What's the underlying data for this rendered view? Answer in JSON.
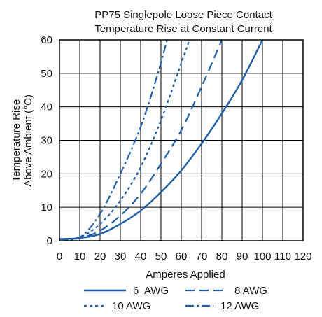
{
  "chart_data": {
    "type": "line",
    "title": "PP75 Singlepole Loose Piece Contact",
    "subtitle": "Temperature Rise at Constant Current",
    "xlabel": "Amperes Applied",
    "ylabel_line1": "Temperature Rise",
    "ylabel_line2": "Above Ambient (°C)",
    "xlim": [
      0,
      120
    ],
    "ylim": [
      0,
      60
    ],
    "x_ticks": [
      "0",
      "10",
      "20",
      "30",
      "40",
      "50",
      "60",
      "70",
      "80",
      "90",
      "100",
      "110",
      "120"
    ],
    "y_ticks": [
      "0",
      "10",
      "20",
      "30",
      "40",
      "50",
      "60"
    ],
    "grid": true,
    "legend_position": "bottom",
    "series": [
      {
        "name": "6  AWG",
        "style": "solid",
        "color": "#1f5fa8",
        "x": [
          0,
          10,
          20,
          30,
          40,
          50,
          60,
          70,
          80,
          90,
          100
        ],
        "y": [
          0.5,
          0.8,
          2,
          5,
          9,
          14.5,
          21,
          29,
          38,
          48,
          60
        ]
      },
      {
        "name": "8 AWG",
        "style": "dash",
        "color": "#1f5fa8",
        "x": [
          0,
          10,
          20,
          30,
          40,
          50,
          60,
          70,
          80
        ],
        "y": [
          0.5,
          0.8,
          3,
          7.5,
          14,
          23,
          33,
          46,
          60
        ]
      },
      {
        "name": "10 AWG",
        "style": "dot",
        "color": "#1f5fa8",
        "x": [
          0,
          10,
          20,
          30,
          40,
          50,
          60,
          64
        ],
        "y": [
          0.5,
          1,
          5,
          12,
          22,
          36,
          53,
          60
        ]
      },
      {
        "name": "12 AWG",
        "style": "dashdot",
        "color": "#1f5fa8",
        "x": [
          0,
          10,
          20,
          30,
          40,
          48,
          53
        ],
        "y": [
          0.5,
          1,
          8,
          20,
          34,
          49,
          60
        ]
      }
    ]
  }
}
